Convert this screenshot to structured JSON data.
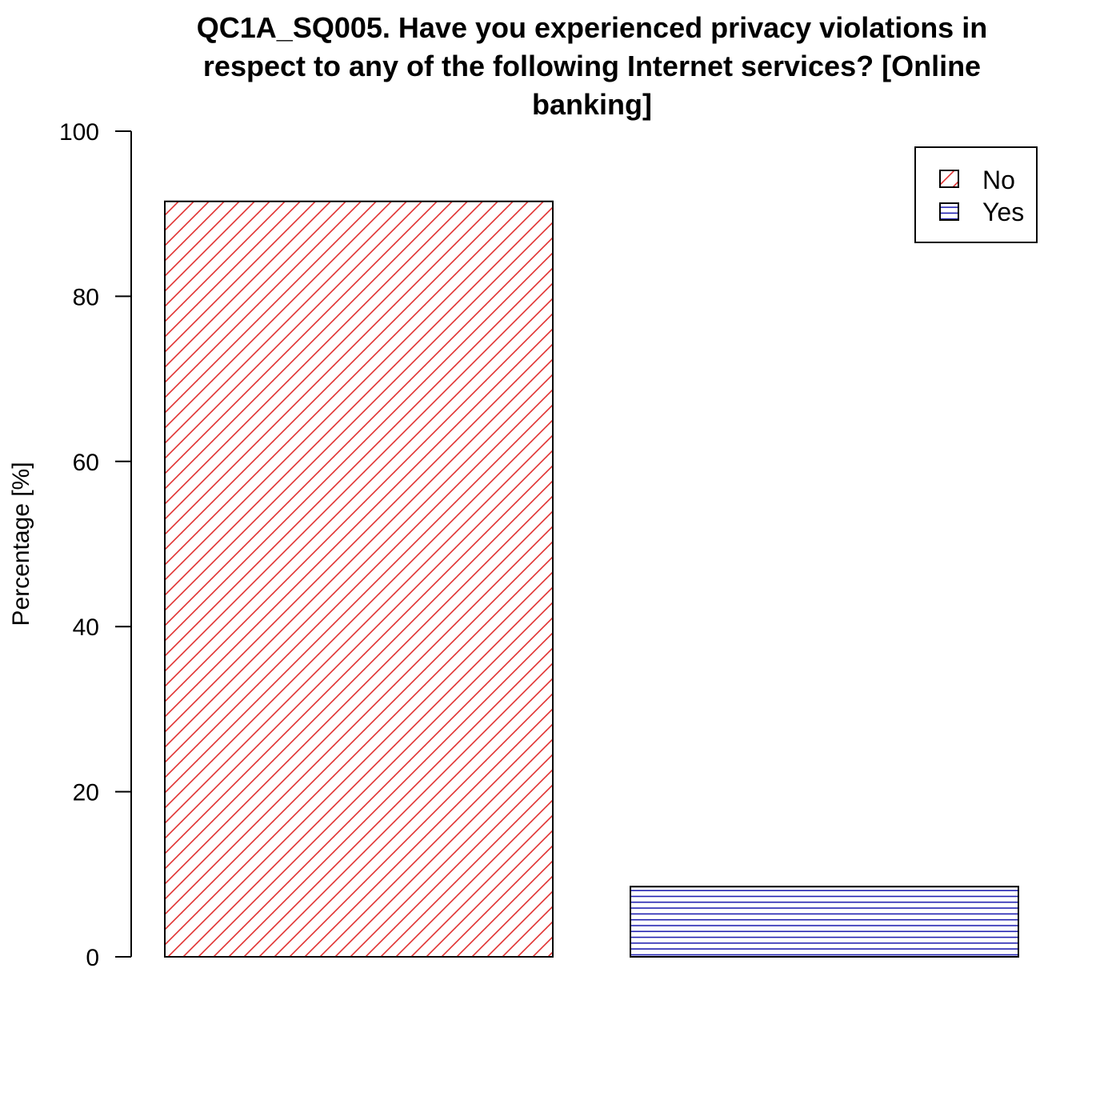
{
  "chart_data": {
    "type": "bar",
    "title_lines": [
      "QC1A_SQ005. Have you experienced privacy violations in",
      "respect to any of the following Internet services? [Online",
      "banking]"
    ],
    "ylabel": "Percentage [%]",
    "xlabel": "",
    "ylim": [
      0,
      100
    ],
    "yticks": [
      0,
      20,
      40,
      60,
      80,
      100
    ],
    "categories": [
      "No",
      "Yes"
    ],
    "values": [
      91.5,
      8.5
    ],
    "legend": {
      "placement": "top-right",
      "entries": [
        {
          "label": "No",
          "color": "#e03030",
          "pattern": "diagonal"
        },
        {
          "label": "Yes",
          "color": "#2020b0",
          "pattern": "horizontal"
        }
      ]
    },
    "grid": false
  }
}
